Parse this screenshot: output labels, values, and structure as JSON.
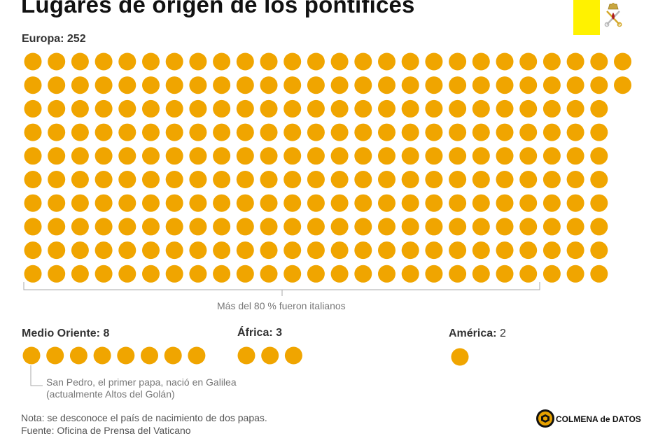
{
  "title": "Lugares de origen de los pontífices",
  "chart_data": [
    {
      "type": "waffle",
      "name": "Europa",
      "label": "Europa:",
      "count": 252,
      "annotation": "Más del 80 % fueron italianos",
      "color": "#f0a500"
    },
    {
      "type": "waffle",
      "name": "Medio Oriente",
      "label": "Medio Oriente:",
      "count": 8,
      "annotation": "San Pedro, el primer papa, nació en Galilea (actualmente Altos del Golán)",
      "color": "#f0a500"
    },
    {
      "type": "waffle",
      "name": "África",
      "label": "África:",
      "count": 3,
      "color": "#f0a500"
    },
    {
      "type": "waffle",
      "name": "América",
      "label": "América:",
      "count": 2,
      "color": "#f0a500"
    }
  ],
  "footer": {
    "note": "Nota: se desconoce el país de nacimiento de dos papas.",
    "source": "Fuente: Oficina de Prensa del Vaticano"
  },
  "brand": {
    "name": "COLMENA de DATOS"
  },
  "flag": {
    "yellow": "#fff200",
    "white": "#ffffff",
    "emblem": "papal-keys-icon"
  }
}
